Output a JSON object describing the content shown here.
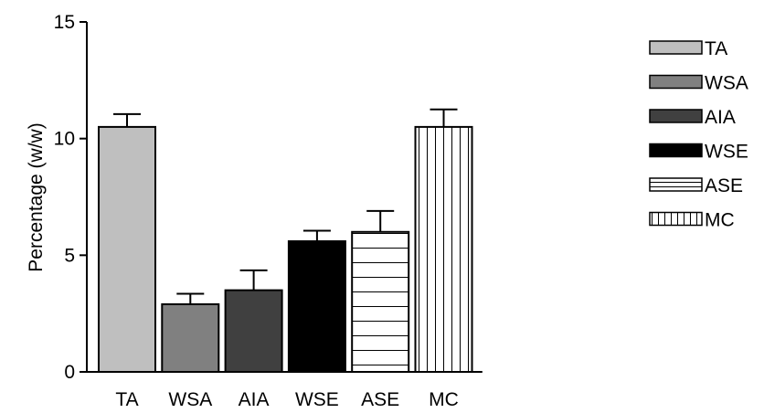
{
  "chart_data": {
    "type": "bar",
    "categories": [
      "TA",
      "WSA",
      "AIA",
      "WSE",
      "ASE",
      "MC"
    ],
    "values": [
      10.5,
      2.9,
      3.5,
      5.6,
      6.0,
      10.5
    ],
    "errors": [
      0.55,
      0.45,
      0.85,
      0.45,
      0.9,
      0.75
    ],
    "title": "",
    "xlabel": "",
    "ylabel": "Percentage (w/w)",
    "ylim": [
      0,
      15
    ],
    "yticks": [
      0,
      5,
      10,
      15
    ],
    "grid": false,
    "legend_position": "right",
    "fills": [
      {
        "name": "TA",
        "color": "#bfbfbf",
        "pattern": "solid"
      },
      {
        "name": "WSA",
        "color": "#808080",
        "pattern": "solid"
      },
      {
        "name": "AIA",
        "color": "#404040",
        "pattern": "solid"
      },
      {
        "name": "WSE",
        "color": "#000000",
        "pattern": "solid"
      },
      {
        "name": "ASE",
        "color": "#ffffff",
        "pattern": "horizontal-lines"
      },
      {
        "name": "MC",
        "color": "#ffffff",
        "pattern": "vertical-lines"
      }
    ],
    "legend": [
      "TA",
      "WSA",
      "AIA",
      "WSE",
      "ASE",
      "MC"
    ]
  }
}
